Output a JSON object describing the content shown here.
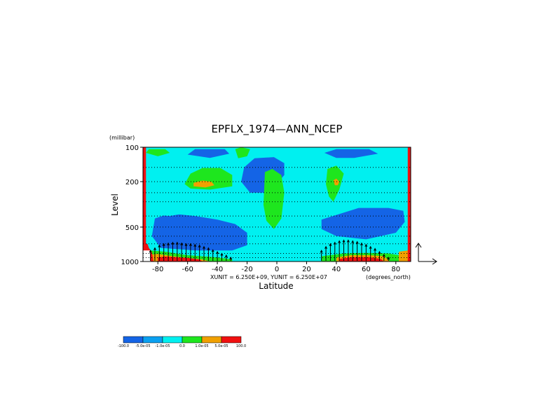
{
  "chart_data": {
    "type": "heatmap",
    "title": "EPFLX_1974—ANN_NCEP",
    "xlabel": "Latitude",
    "ylabel": "Level",
    "y_units": "(millibar)",
    "x_units": "(degrees_north)",
    "unit_note": "XUNIT = 6.250E+09, YUNIT = 6.250E+07",
    "x_range": [
      -90,
      90
    ],
    "y_range": [
      100,
      1000
    ],
    "y_scale": "log",
    "x_ticks": [
      "-80",
      "-60",
      "-40",
      "-20",
      "0",
      "20",
      "40",
      "60",
      "80"
    ],
    "x_tick_values": [
      -80,
      -60,
      -40,
      -20,
      0,
      20,
      40,
      60,
      80
    ],
    "y_ticks": [
      "100",
      "200",
      "500",
      "1000"
    ],
    "y_tick_values": [
      100,
      200,
      500,
      1000
    ],
    "grid": "dotted horizontal lines",
    "colorbar": {
      "colors": [
        "#1464e6",
        "#0aa0f0",
        "#00f0f0",
        "#1ee61e",
        "#f0a000",
        "#f01010"
      ],
      "labels": [
        "-100.0",
        "-5.0e-05",
        "-1.0e-05",
        "0.0",
        "1.0e-05",
        "5.0e-05",
        "100.0"
      ]
    },
    "regions": [
      {
        "class": 0,
        "poly": [
          [
            -82,
            420
          ],
          [
            -72,
            380
          ],
          [
            -55,
            400
          ],
          [
            -40,
            430
          ],
          [
            -28,
            470
          ],
          [
            -20,
            560
          ],
          [
            -20,
            720
          ],
          [
            -30,
            800
          ],
          [
            -55,
            800
          ],
          [
            -78,
            760
          ],
          [
            -84,
            600
          ]
        ]
      },
      {
        "class": 0,
        "poly": [
          [
            -60,
            116
          ],
          [
            -55,
            104
          ],
          [
            -35,
            104
          ],
          [
            -32,
            114
          ],
          [
            -45,
            124
          ]
        ]
      },
      {
        "class": 0,
        "poly": [
          [
            -22,
            150
          ],
          [
            -15,
            125
          ],
          [
            -2,
            122
          ],
          [
            5,
            138
          ],
          [
            5,
            175
          ],
          [
            -5,
            250
          ],
          [
            -18,
            250
          ],
          [
            -24,
            200
          ]
        ]
      },
      {
        "class": 0,
        "poly": [
          [
            30,
            430
          ],
          [
            55,
            340
          ],
          [
            75,
            340
          ],
          [
            85,
            360
          ],
          [
            86,
            450
          ],
          [
            80,
            560
          ],
          [
            60,
            640
          ],
          [
            40,
            600
          ],
          [
            30,
            520
          ]
        ]
      },
      {
        "class": 0,
        "poly": [
          [
            32,
            112
          ],
          [
            40,
            104
          ],
          [
            62,
            104
          ],
          [
            68,
            114
          ],
          [
            52,
            124
          ],
          [
            40,
            124
          ]
        ]
      },
      {
        "class": 2,
        "poly": [
          [
            -85,
            340
          ],
          [
            -78,
            320
          ],
          [
            -65,
            330
          ],
          [
            -62,
            380
          ],
          [
            -72,
            400
          ],
          [
            -84,
            390
          ]
        ]
      },
      {
        "class": 2,
        "poly": [
          [
            -12,
            300
          ],
          [
            -5,
            290
          ],
          [
            0,
            320
          ],
          [
            0,
            420
          ],
          [
            -6,
            480
          ],
          [
            -12,
            420
          ]
        ]
      },
      {
        "class": 2,
        "poly": [
          [
            35,
            640
          ],
          [
            60,
            660
          ],
          [
            80,
            730
          ],
          [
            78,
            830
          ],
          [
            55,
            840
          ],
          [
            30,
            820
          ],
          [
            25,
            720
          ]
        ]
      },
      {
        "class": 3,
        "poly": [
          [
            -88,
            112
          ],
          [
            -86,
            104
          ],
          [
            -75,
            104
          ],
          [
            -72,
            112
          ],
          [
            -80,
            120
          ]
        ]
      },
      {
        "class": 3,
        "poly": [
          [
            -58,
            170
          ],
          [
            -50,
            152
          ],
          [
            -38,
            152
          ],
          [
            -30,
            175
          ],
          [
            -30,
            220
          ],
          [
            -45,
            235
          ],
          [
            -58,
            230
          ],
          [
            -62,
            210
          ]
        ]
      },
      {
        "class": 3,
        "poly": [
          [
            -8,
            165
          ],
          [
            -3,
            155
          ],
          [
            3,
            175
          ],
          [
            5,
            250
          ],
          [
            3,
            420
          ],
          [
            -2,
            520
          ],
          [
            -7,
            440
          ],
          [
            -9,
            320
          ]
        ]
      },
      {
        "class": 3,
        "poly": [
          [
            -28,
            104
          ],
          [
            -24,
            100
          ],
          [
            -18,
            104
          ],
          [
            -20,
            120
          ],
          [
            -26,
            125
          ]
        ]
      },
      {
        "class": 3,
        "poly": [
          [
            34,
            155
          ],
          [
            40,
            145
          ],
          [
            45,
            170
          ],
          [
            42,
            235
          ],
          [
            38,
            300
          ],
          [
            35,
            270
          ],
          [
            33,
            210
          ]
        ]
      },
      {
        "class": 3,
        "poly": [
          [
            -85,
            800
          ],
          [
            -75,
            820
          ],
          [
            -60,
            880
          ],
          [
            -40,
            920
          ],
          [
            -30,
            960
          ],
          [
            -30,
            1000
          ],
          [
            -85,
            1000
          ]
        ]
      },
      {
        "class": 3,
        "poly": [
          [
            30,
            900
          ],
          [
            45,
            850
          ],
          [
            60,
            840
          ],
          [
            75,
            850
          ],
          [
            82,
            880
          ],
          [
            82,
            1000
          ],
          [
            30,
            1000
          ]
        ]
      },
      {
        "class": 4,
        "poly": [
          [
            -56,
            205
          ],
          [
            -50,
            196
          ],
          [
            -44,
            200
          ],
          [
            -42,
            215
          ],
          [
            -48,
            225
          ],
          [
            -56,
            220
          ]
        ]
      },
      {
        "class": 4,
        "poly": [
          [
            38,
            195
          ],
          [
            40,
            188
          ],
          [
            42,
            200
          ],
          [
            41,
            215
          ],
          [
            39,
            215
          ]
        ]
      },
      {
        "class": 4,
        "poly": [
          [
            -85,
            870
          ],
          [
            -80,
            860
          ],
          [
            -70,
            900
          ],
          [
            -60,
            930
          ],
          [
            -50,
            960
          ],
          [
            -45,
            1000
          ],
          [
            -85,
            1000
          ]
        ]
      },
      {
        "class": 4,
        "poly": [
          [
            40,
            920
          ],
          [
            50,
            880
          ],
          [
            62,
            880
          ],
          [
            72,
            900
          ],
          [
            76,
            1000
          ],
          [
            40,
            1000
          ]
        ]
      },
      {
        "class": 4,
        "poly": [
          [
            82,
            820
          ],
          [
            88,
            800
          ],
          [
            90,
            810
          ],
          [
            90,
            1000
          ],
          [
            82,
            1000
          ]
        ]
      },
      {
        "class": 5,
        "poly": [
          [
            -80,
            920
          ],
          [
            -75,
            905
          ],
          [
            -60,
            930
          ],
          [
            -52,
            960
          ],
          [
            -50,
            1000
          ],
          [
            -80,
            1000
          ]
        ]
      },
      {
        "class": 5,
        "poly": [
          [
            42,
            950
          ],
          [
            50,
            915
          ],
          [
            62,
            915
          ],
          [
            70,
            950
          ],
          [
            72,
            1000
          ],
          [
            42,
            1000
          ]
        ]
      },
      {
        "class": 5,
        "poly": [
          [
            -90,
            700
          ],
          [
            -87,
            700
          ],
          [
            -86,
            760
          ],
          [
            -84,
            830
          ],
          [
            -83,
            1000
          ],
          [
            -88,
            1000
          ],
          [
            -90,
            1000
          ]
        ]
      }
    ],
    "side_bars": [
      {
        "class": 5,
        "x": [
          -90,
          -88
        ]
      },
      {
        "class": 5,
        "x": [
          88,
          90
        ]
      }
    ],
    "white_patch": {
      "x": [
        -90,
        -85
      ],
      "y": [
        800,
        1000
      ]
    },
    "arrows": {
      "x": [
        -85,
        -82,
        -79,
        -76,
        -73,
        -70,
        -67,
        -64,
        -61,
        -58,
        -55,
        -52,
        -49,
        -46,
        -43,
        -40,
        -37,
        -34,
        -31,
        30,
        33,
        36,
        39,
        42,
        45,
        48,
        51,
        54,
        57,
        60,
        63,
        66,
        69,
        72,
        75
      ],
      "level_top": [
        800,
        760,
        720,
        700,
        690,
        680,
        680,
        690,
        700,
        700,
        710,
        720,
        740,
        760,
        790,
        820,
        850,
        880,
        920,
        800,
        740,
        700,
        680,
        660,
        650,
        650,
        660,
        670,
        690,
        710,
        740,
        770,
        820,
        870,
        920
      ]
    },
    "reference_arrow": {
      "label": ""
    }
  }
}
